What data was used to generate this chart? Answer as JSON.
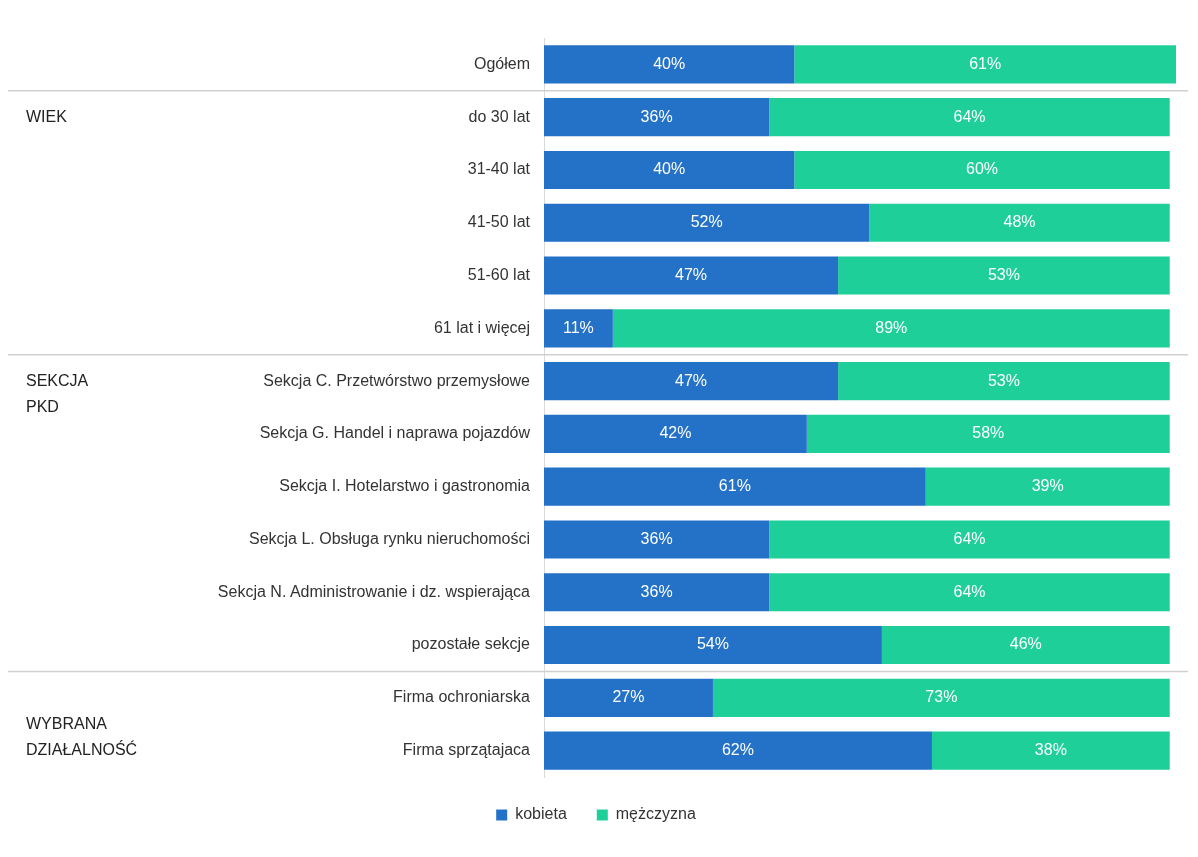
{
  "chart_data": {
    "type": "bar",
    "orientation": "horizontal",
    "stacked": true,
    "legend": "bottom",
    "grid": false,
    "categories": [
      "Ogółem",
      "do 30 lat",
      "31-40 lat",
      "41-50 lat",
      "51-60 lat",
      "61 lat i więcej",
      "Sekcja C. Przetwórstwo przemysłowe",
      "Sekcja G. Handel i naprawa pojazdów",
      "Sekcja I. Hotelarstwo i gastronomia",
      "Sekcja L. Obsługa rynku nieruchomości",
      "Sekcja N. Administrowanie i dz. wspierająca",
      "pozostałe sekcje",
      "Firma ochroniarska",
      "Firma sprzątajaca"
    ],
    "series": [
      {
        "name": "kobieta",
        "color": "#2471c8",
        "values": [
          40,
          36,
          40,
          52,
          47,
          11,
          47,
          42,
          61,
          36,
          36,
          54,
          27,
          62
        ],
        "value_labels": [
          "40%",
          "36%",
          "40%",
          "52%",
          "47%",
          "11%",
          "47%",
          "42%",
          "61%",
          "36%",
          "36%",
          "54%",
          "27%",
          "62%"
        ]
      },
      {
        "name": "mężczyzna",
        "color": "#1fcf9a",
        "values": [
          61,
          64,
          60,
          48,
          53,
          89,
          53,
          58,
          39,
          64,
          64,
          46,
          73,
          38
        ],
        "value_labels": [
          "61%",
          "64%",
          "60%",
          "48%",
          "53%",
          "89%",
          "53%",
          "58%",
          "39%",
          "64%",
          "64%",
          "46%",
          "73%",
          "38%"
        ]
      }
    ],
    "annotations": [
      "WIEK",
      "SEKCJA PKD",
      "WYBRANA DZIAŁALNOŚĆ"
    ]
  }
}
